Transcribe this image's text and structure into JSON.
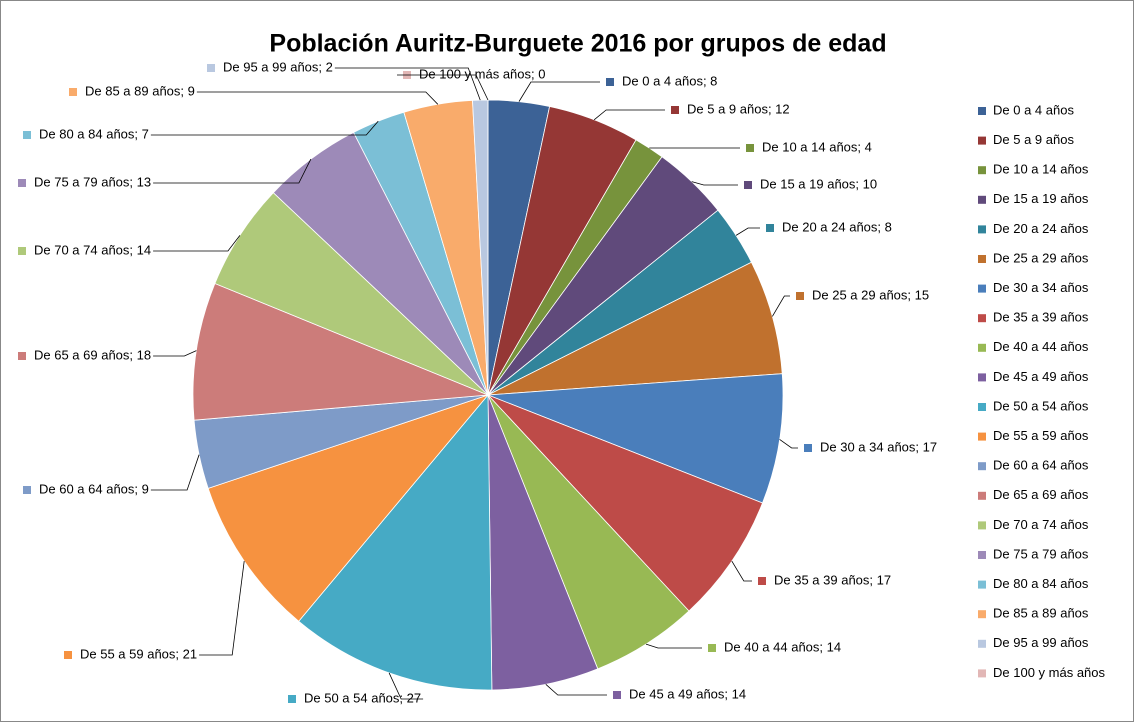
{
  "chart_data": {
    "type": "pie",
    "title": "Población Auritz-Burguete 2016 por grupos de edad",
    "categories": [
      "De 0 a 4 años",
      "De 5 a 9 años",
      "De 10 a 14 años",
      "De 15 a 19 años",
      "De 20 a 24 años",
      "De 25 a 29 años",
      "De 30 a 34 años",
      "De 35 a 39 años",
      "De 40 a 44 años",
      "De 45 a 49 años",
      "De 50 a 54 años",
      "De 55 a 59 años",
      "De 60 a 64 años",
      "De 65 a 69 años",
      "De 70 a 74 años",
      "De 75 a 79 años",
      "De 80 a 84 años",
      "De 85 a 89 años",
      "De 95 a 99 años",
      "De 100 y más años"
    ],
    "values": [
      8,
      12,
      4,
      10,
      8,
      15,
      17,
      17,
      14,
      14,
      27,
      21,
      9,
      18,
      14,
      13,
      7,
      9,
      2,
      0
    ],
    "value_labels": [
      "De 0 a 4 años; 8",
      "De 5 a 9 años; 12",
      "De 10 a 14 años; 4",
      "De 15 a 19 años; 10",
      "De 20 a 24 años; 8",
      "De 25 a 29 años; 15",
      "De 30 a 34 años; 17",
      "De 35 a 39 años; 17",
      "De 40 a 44 años; 14",
      "De 45 a 49 años; 14",
      "De 50 a 54 años; 27",
      "De 55 a 59 años; 21",
      "De 60 a 64 años; 9",
      "De 65 a 69 años; 18",
      "De 70 a 74 años; 14",
      "De 75 a 79 años; 13",
      "De 80 a 84 años; 7",
      "De 85 a 89 años; 9",
      "De 95 a 99 años; 2",
      "De 100 y más años; 0"
    ],
    "colors": [
      "#3c6296",
      "#953735",
      "#77933c",
      "#604a7b",
      "#31849b",
      "#c0712e",
      "#4a7ebb",
      "#be4b48",
      "#98b954",
      "#7d60a0",
      "#46aac5",
      "#f69240",
      "#7e9bc8",
      "#cc7c7a",
      "#afc97a",
      "#9d8ab8",
      "#7bbfd6",
      "#f9ab6b",
      "#b9c8e0",
      "#e2b7b6"
    ],
    "legend": "right"
  }
}
